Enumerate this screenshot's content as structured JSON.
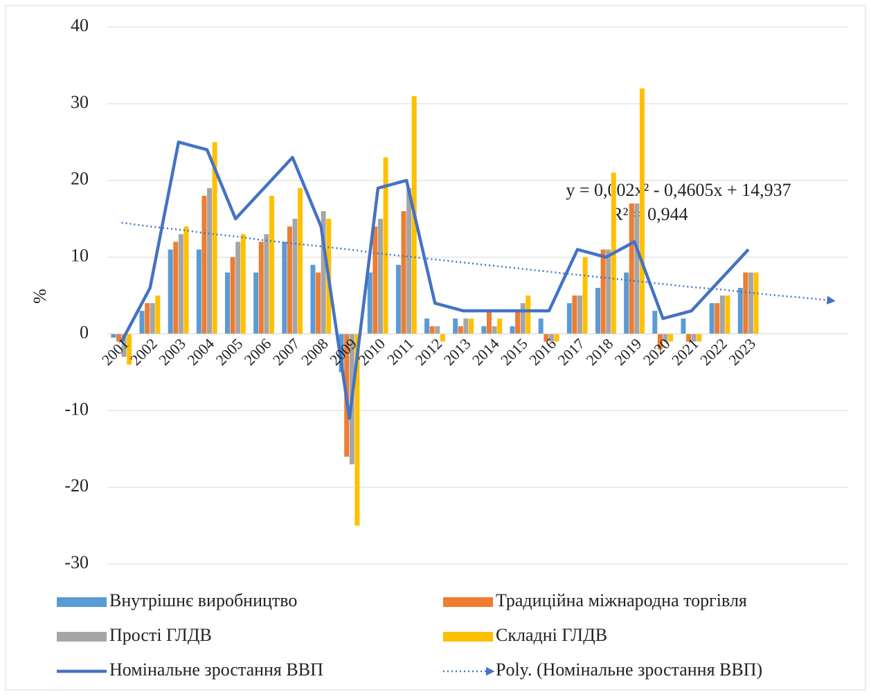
{
  "chart_data": {
    "type": "bar",
    "ylabel": "%",
    "categories": [
      "2001",
      "2002",
      "2003",
      "2004",
      "2005",
      "2006",
      "2007",
      "2008",
      "2009",
      "2010",
      "2011",
      "2012",
      "2013",
      "2014",
      "2015",
      "2016",
      "2017",
      "2018",
      "2019",
      "2020",
      "2021",
      "2022",
      "2023",
      null,
      null,
      null
    ],
    "series": [
      {
        "name": "Внутрішнє виробництво",
        "color": "#5b9bd5",
        "values": [
          -0.5,
          3,
          11,
          11,
          8,
          8,
          12,
          9,
          -5,
          8,
          9,
          2,
          2,
          1,
          1,
          2,
          4,
          6,
          8,
          3,
          2,
          4,
          6,
          null,
          null,
          null
        ]
      },
      {
        "name": "Традиційна міжнародна торгівля",
        "color": "#ed7d31",
        "values": [
          -1,
          4,
          12,
          18,
          10,
          12,
          14,
          8,
          -16,
          14,
          16,
          1,
          1,
          3,
          3,
          -1,
          5,
          11,
          17,
          -2,
          -1,
          4,
          8,
          null,
          null,
          null
        ]
      },
      {
        "name": "Прості ГЛДВ",
        "color": "#a5a5a5",
        "values": [
          -3,
          4,
          13,
          19,
          12,
          13,
          15,
          16,
          -17,
          15,
          19,
          1,
          2,
          1,
          4,
          -1,
          5,
          11,
          17,
          -1,
          -1,
          5,
          8,
          null,
          null,
          null
        ]
      },
      {
        "name": "Складні ГЛДВ",
        "color": "#ffc000",
        "values": [
          -4,
          5,
          14,
          25,
          13,
          18,
          19,
          15,
          -25,
          23,
          31,
          -1,
          2,
          2,
          5,
          -1,
          10,
          21,
          32,
          -1,
          -1,
          5,
          8,
          null,
          null,
          null
        ]
      },
      {
        "name": "Номінальне зростання ВВП",
        "color": "#4472c4",
        "type": "line",
        "values": [
          -1,
          6,
          25,
          24,
          15,
          19,
          23,
          14,
          -11,
          19,
          20,
          4,
          3,
          3,
          3,
          3,
          11,
          10,
          12,
          2,
          3,
          7,
          11,
          null,
          null,
          null
        ]
      },
      {
        "name": "Poly. (Номінальне зростання ВВП)",
        "color": "#4472c4",
        "type": "line",
        "style": "dotted",
        "values": [
          14.5,
          14.0,
          13.6,
          13.1,
          12.7,
          12.2,
          11.8,
          11.4,
          11.0,
          10.5,
          10.1,
          9.7,
          9.3,
          8.9,
          8.5,
          8.1,
          7.7,
          7.3,
          6.9,
          6.5,
          6.1,
          5.8,
          5.4,
          5.0,
          4.7,
          4.3
        ]
      }
    ],
    "annotations": [
      "y = 0,002x² - 0,4605x + 14,937",
      "R² = 0,944"
    ],
    "ylim": [
      -30,
      40
    ],
    "yticks": [
      -30,
      -20,
      -10,
      0,
      10,
      20,
      30,
      40
    ],
    "grid": true,
    "legend": "bottom"
  }
}
